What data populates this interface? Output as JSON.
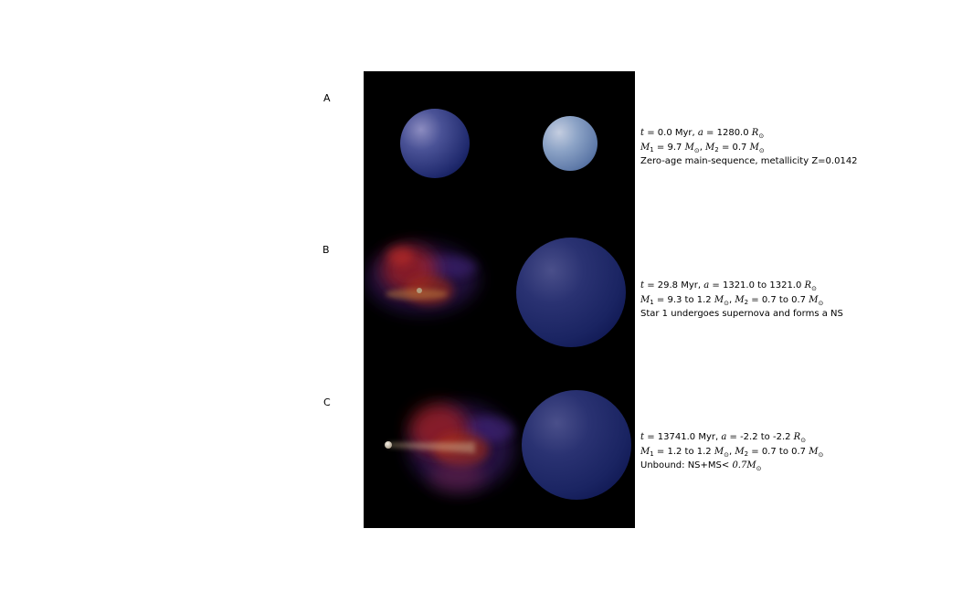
{
  "colors": {
    "panel_background": "#000000",
    "main_sequence_star": "#1a2560",
    "small_main_sequence_star": "#6f8fbf",
    "supernova_red": "#b02020",
    "supernova_purple": "#3a1a6a",
    "neutron_star": "#d8c8b0"
  },
  "rows": [
    {
      "label": "A",
      "time": "0.0",
      "separation": "1280.0",
      "m1": "9.7",
      "m2": "0.7",
      "description": "Zero-age main-sequence, metallicity Z=0.0142",
      "star1": "main-sequence-star-icon",
      "star2": "main-sequence-star-icon"
    },
    {
      "label": "B",
      "time": "29.8",
      "separation": "1321.0 to 1321.0",
      "m1": "9.3 to 1.2",
      "m2": "0.7 to 0.7",
      "description": "Star 1 undergoes supernova and forms a NS",
      "star1": "supernova-remnant-icon",
      "star2": "main-sequence-star-icon"
    },
    {
      "label": "C",
      "time": "13741.0",
      "separation": "-2.2 to -2.2",
      "m1": "1.2 to 1.2",
      "m2": "0.7 to 0.7",
      "description_prefix": "Unbound:  NS+MS",
      "description_math": "< 0.7M",
      "star1": "neutron-star-icon",
      "star2": "main-sequence-star-icon"
    }
  ]
}
